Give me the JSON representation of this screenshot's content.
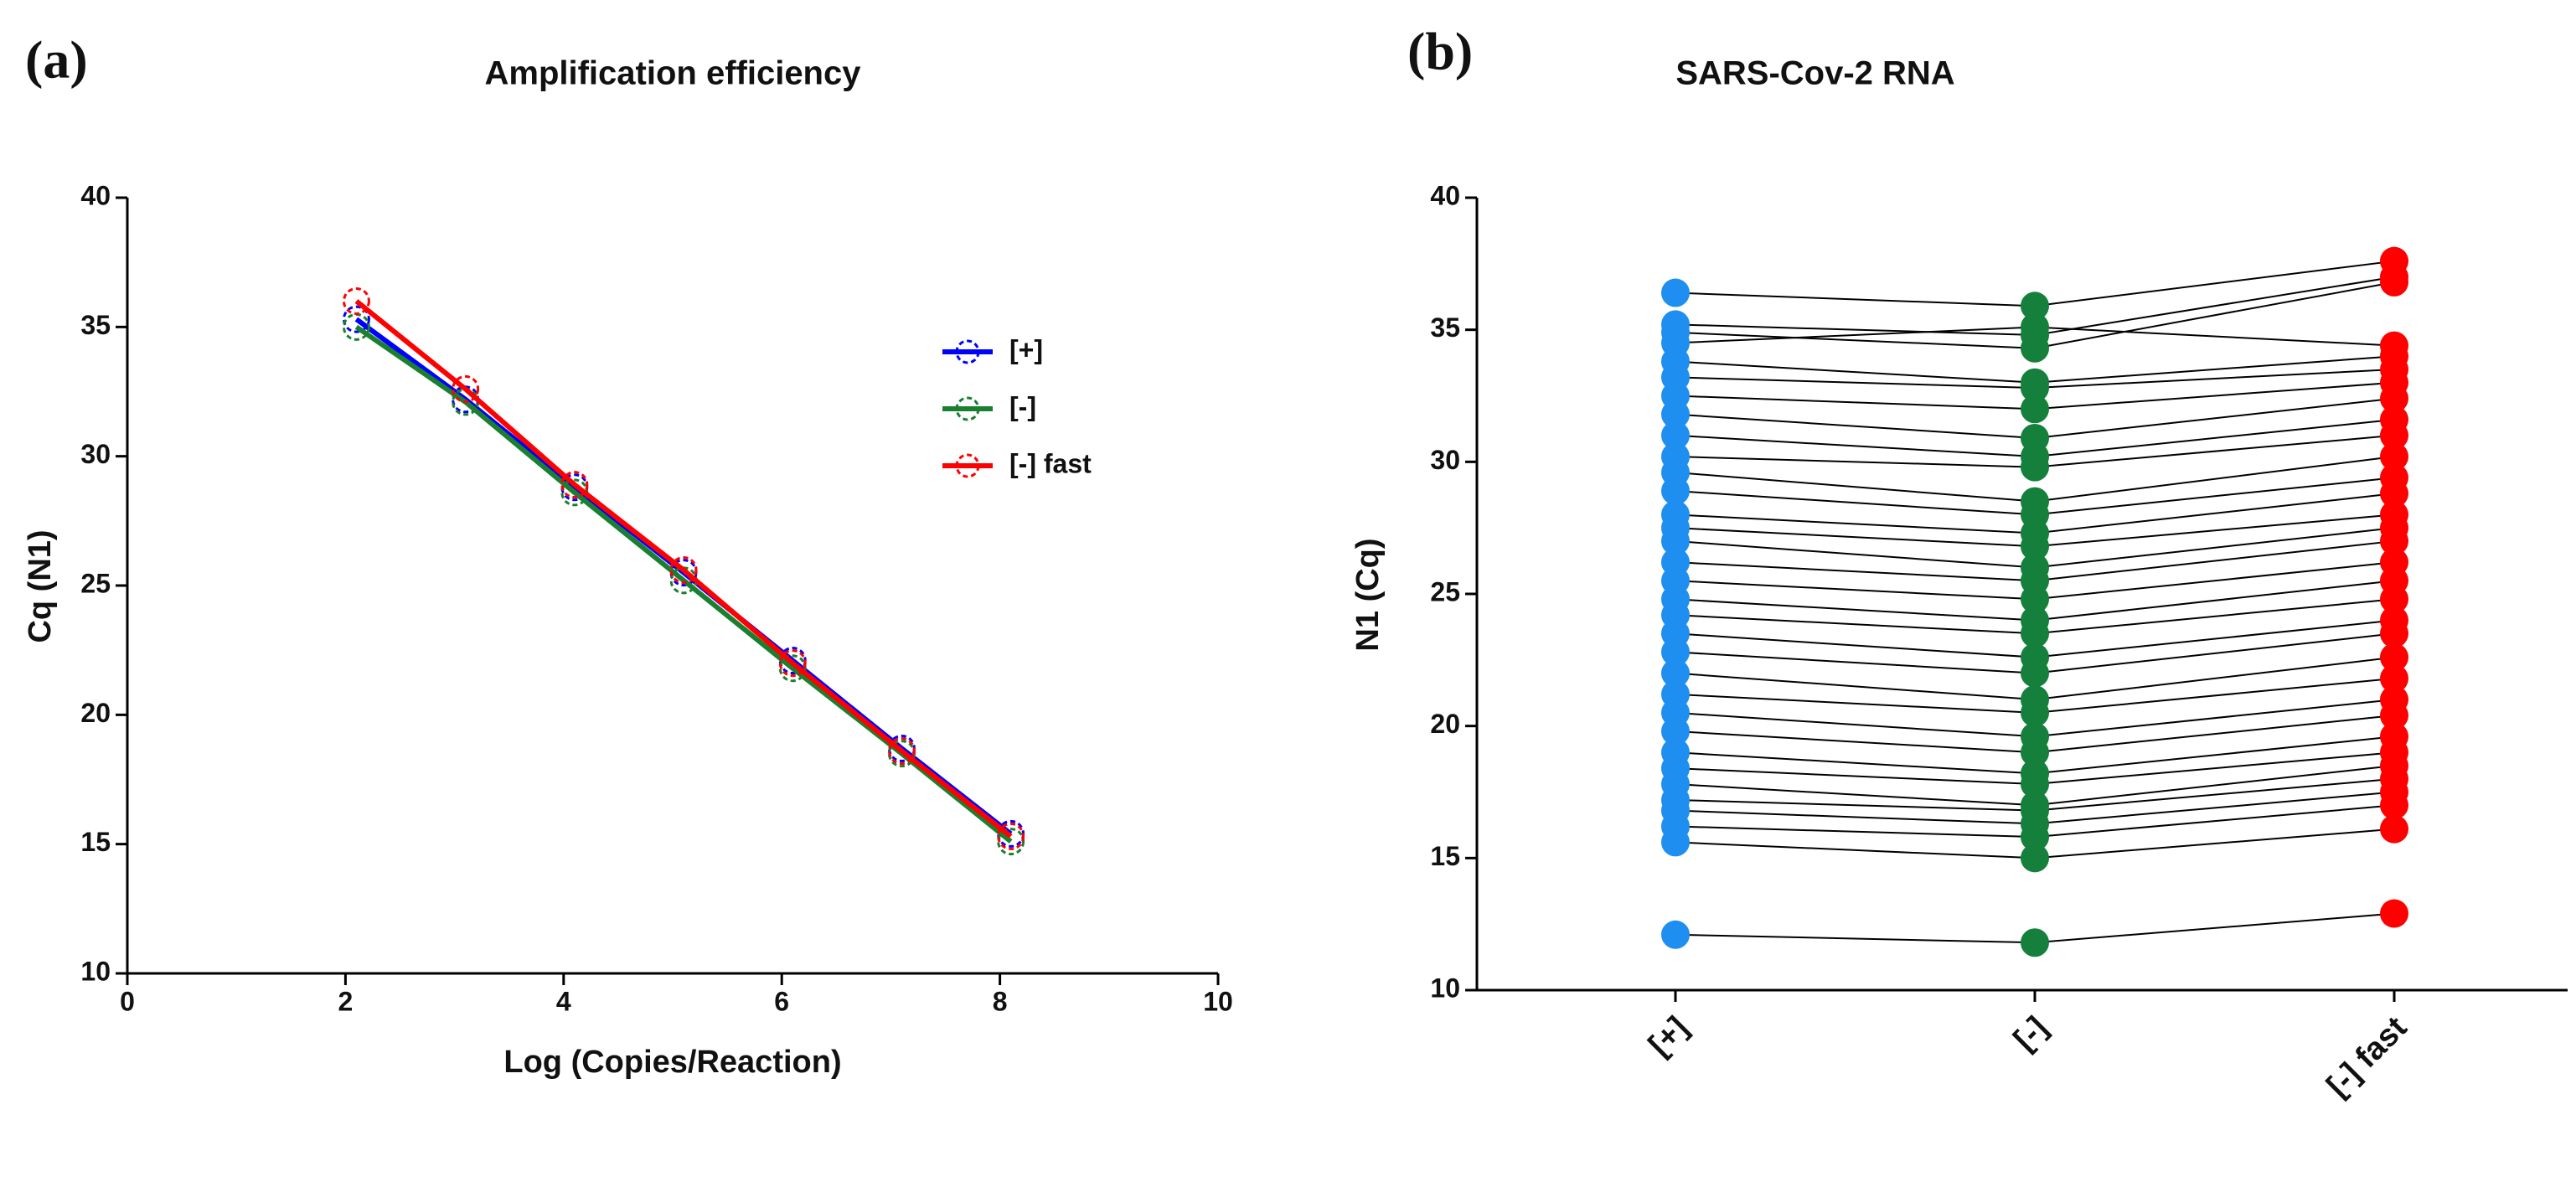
{
  "chart_data": [
    {
      "type": "line",
      "panel_label": "(a)",
      "title": "Amplification efficiency",
      "xlabel": "Log (Copies/Reaction)",
      "ylabel": "Cq (N1)",
      "x": [
        2.1,
        3.1,
        4.1,
        5.1,
        6.1,
        7.1,
        8.1
      ],
      "series": [
        {
          "name": "[+]",
          "color": "#0000ff",
          "values": [
            35.3,
            32.2,
            28.8,
            25.5,
            22.1,
            18.7,
            15.4
          ]
        },
        {
          "name": "[-]",
          "color": "#1a7f2e",
          "values": [
            35.0,
            32.1,
            28.6,
            25.2,
            21.8,
            18.5,
            15.1
          ]
        },
        {
          "name": "[-] fast",
          "color": "#ff0000",
          "values": [
            36.0,
            32.6,
            28.9,
            25.6,
            22.0,
            18.6,
            15.3
          ]
        }
      ],
      "xlim": [
        0,
        10
      ],
      "xticks": [
        0,
        2,
        4,
        6,
        8,
        10
      ],
      "ylim": [
        10,
        40
      ],
      "yticks": [
        10,
        15,
        20,
        25,
        30,
        35,
        40
      ],
      "legend": "upper right"
    },
    {
      "type": "paired_dot",
      "panel_label": "(b)",
      "title": "SARS-Cov-2 RNA",
      "ylabel": "N1 (Cq)",
      "categories": [
        "[+]",
        "[-]",
        "[-] fast"
      ],
      "colors": [
        "#1e8ff0",
        "#14803c",
        "#ff0000"
      ],
      "samples": [
        [
          36.4,
          35.9,
          37.6
        ],
        [
          35.2,
          34.8,
          37.0
        ],
        [
          34.9,
          34.3,
          36.8
        ],
        [
          34.5,
          35.1,
          34.4
        ],
        [
          33.8,
          33.0,
          34.0
        ],
        [
          33.2,
          32.8,
          33.5
        ],
        [
          32.5,
          32.0,
          33.0
        ],
        [
          31.8,
          30.9,
          32.4
        ],
        [
          31.0,
          30.2,
          31.6
        ],
        [
          30.2,
          29.8,
          31.0
        ],
        [
          29.6,
          28.5,
          30.2
        ],
        [
          28.9,
          28.0,
          29.4
        ],
        [
          28.0,
          27.3,
          28.8
        ],
        [
          27.5,
          26.8,
          28.0
        ],
        [
          27.0,
          26.0,
          27.5
        ],
        [
          26.2,
          25.5,
          27.0
        ],
        [
          25.5,
          24.8,
          26.2
        ],
        [
          24.8,
          24.0,
          25.5
        ],
        [
          24.2,
          23.5,
          24.8
        ],
        [
          23.5,
          22.6,
          24.0
        ],
        [
          22.8,
          22.0,
          23.5
        ],
        [
          22.0,
          21.0,
          22.6
        ],
        [
          21.2,
          20.5,
          21.8
        ],
        [
          20.5,
          19.6,
          21.0
        ],
        [
          19.8,
          19.0,
          20.4
        ],
        [
          19.0,
          18.2,
          19.6
        ],
        [
          18.4,
          17.8,
          19.0
        ],
        [
          17.8,
          17.0,
          18.5
        ],
        [
          17.2,
          16.8,
          18.0
        ],
        [
          16.8,
          16.3,
          17.5
        ],
        [
          16.2,
          15.8,
          17.0
        ],
        [
          15.6,
          15.0,
          16.1
        ],
        [
          12.1,
          11.8,
          12.9
        ]
      ],
      "ylim": [
        10,
        40
      ],
      "yticks": [
        10,
        15,
        20,
        25,
        30,
        35,
        40
      ]
    }
  ]
}
